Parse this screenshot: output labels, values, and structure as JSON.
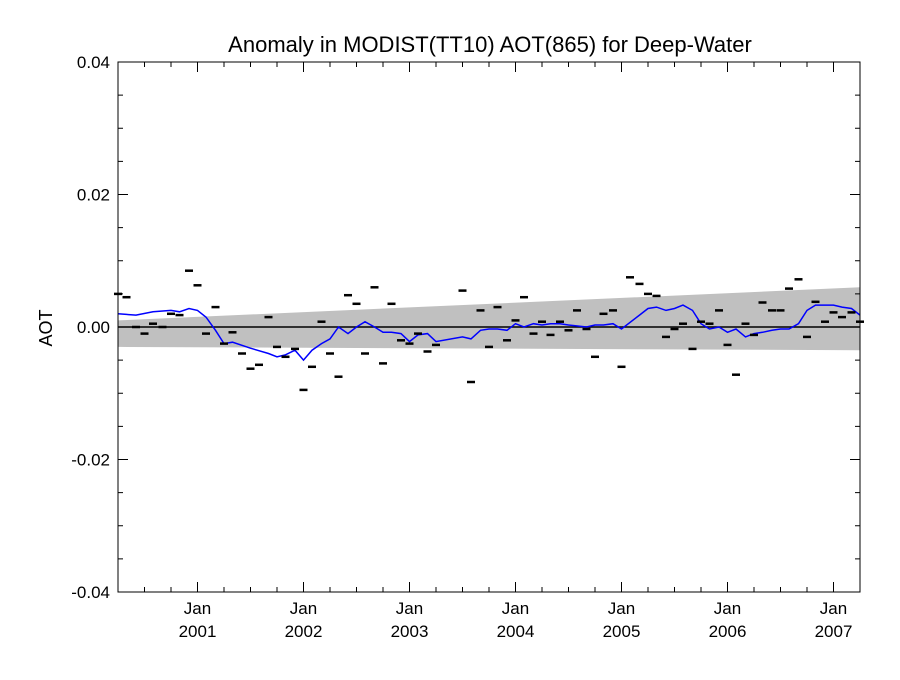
{
  "chart_data": {
    "type": "scatter",
    "title": "Anomaly in MODIST(TT10) AOT(865) for Deep-Water",
    "xlabel": "",
    "ylabel": "AOT",
    "ylim": [
      -0.04,
      0.04
    ],
    "xlim": [
      2000.25,
      2007.25
    ],
    "y_ticks": [
      {
        "value": 0.04,
        "label": "0.04"
      },
      {
        "value": 0.02,
        "label": "0.02"
      },
      {
        "value": 0.0,
        "label": "0.00"
      },
      {
        "value": -0.02,
        "label": "-0.02"
      },
      {
        "value": -0.04,
        "label": "-0.04"
      }
    ],
    "x_ticks": [
      {
        "value": 2001,
        "month": "Jan",
        "year": "2001"
      },
      {
        "value": 2002,
        "month": "Jan",
        "year": "2002"
      },
      {
        "value": 2003,
        "month": "Jan",
        "year": "2003"
      },
      {
        "value": 2004,
        "month": "Jan",
        "year": "2004"
      },
      {
        "value": 2005,
        "month": "Jan",
        "year": "2005"
      },
      {
        "value": 2006,
        "month": "Jan",
        "year": "2006"
      },
      {
        "value": 2007,
        "month": "Jan",
        "year": "2007"
      }
    ],
    "zero_line": 0.0,
    "grid": false,
    "colors": {
      "band": "#c0c0c0",
      "line": "#0000ff",
      "markers": "#000000",
      "zero_line": "#000000"
    },
    "series": [
      {
        "type": "scatter",
        "x": [
          2000.25,
          2000.33,
          2000.42,
          2000.5,
          2000.58,
          2000.67,
          2000.75,
          2000.83,
          2000.92,
          2001.0,
          2001.08,
          2001.17,
          2001.25,
          2001.33,
          2001.42,
          2001.5,
          2001.58,
          2001.67,
          2001.75,
          2001.83,
          2001.92,
          2002.0,
          2002.08,
          2002.17,
          2002.25,
          2002.33,
          2002.42,
          2002.5,
          2002.58,
          2002.67,
          2002.75,
          2002.83,
          2002.92,
          2003.0,
          2003.08,
          2003.17,
          2003.25,
          2003.5,
          2003.58,
          2003.67,
          2003.75,
          2003.83,
          2003.92,
          2004.0,
          2004.08,
          2004.17,
          2004.25,
          2004.33,
          2004.42,
          2004.5,
          2004.58,
          2004.67,
          2004.75,
          2004.83,
          2004.92,
          2005.0,
          2005.08,
          2005.17,
          2005.25,
          2005.33,
          2005.42,
          2005.5,
          2005.58,
          2005.67,
          2005.75,
          2005.83,
          2005.92,
          2006.0,
          2006.08,
          2006.17,
          2006.25,
          2006.33,
          2006.42,
          2006.5,
          2006.58,
          2006.67,
          2006.75,
          2006.83,
          2006.92,
          2007.0,
          2007.08,
          2007.17,
          2007.25
        ],
        "y": [
          0.005,
          0.0045,
          0.0,
          -0.001,
          0.0005,
          0.0,
          0.002,
          0.0018,
          0.0085,
          0.0063,
          -0.001,
          0.003,
          -0.0025,
          -0.0008,
          -0.004,
          -0.0063,
          -0.0057,
          0.0015,
          -0.003,
          -0.0045,
          -0.0033,
          -0.0095,
          -0.006,
          0.0008,
          -0.004,
          -0.0075,
          0.0048,
          0.0035,
          -0.004,
          0.006,
          -0.0055,
          0.0035,
          -0.002,
          -0.0025,
          -0.001,
          -0.0037,
          -0.0027,
          0.0055,
          -0.0083,
          0.0025,
          -0.003,
          0.003,
          -0.002,
          0.001,
          0.0045,
          -0.001,
          0.0008,
          -0.0012,
          0.0008,
          -0.0005,
          0.0025,
          -0.0003,
          -0.0045,
          0.002,
          0.0025,
          -0.006,
          0.0075,
          0.0065,
          0.005,
          0.0047,
          -0.0015,
          -0.0003,
          0.0005,
          -0.0033,
          0.0008,
          0.0005,
          0.0025,
          -0.0027,
          -0.0072,
          0.0005,
          -0.0012,
          0.0037,
          0.0025,
          0.0025,
          0.0058,
          0.0072,
          -0.0015,
          0.0038,
          0.0008,
          0.0022,
          0.0015,
          0.0022,
          0.0008
        ]
      },
      {
        "type": "line",
        "x": [
          2000.25,
          2000.42,
          2000.58,
          2000.75,
          2000.83,
          2000.92,
          2001.0,
          2001.08,
          2001.17,
          2001.25,
          2001.33,
          2001.5,
          2001.67,
          2001.75,
          2001.83,
          2001.92,
          2002.0,
          2002.08,
          2002.17,
          2002.25,
          2002.33,
          2002.42,
          2002.5,
          2002.58,
          2002.67,
          2002.75,
          2002.83,
          2002.92,
          2003.0,
          2003.08,
          2003.17,
          2003.25,
          2003.5,
          2003.58,
          2003.67,
          2003.75,
          2003.83,
          2003.92,
          2004.0,
          2004.08,
          2004.17,
          2004.25,
          2004.33,
          2004.42,
          2004.5,
          2004.67,
          2004.75,
          2004.83,
          2004.92,
          2005.0,
          2005.17,
          2005.25,
          2005.33,
          2005.42,
          2005.5,
          2005.58,
          2005.67,
          2005.75,
          2005.83,
          2005.92,
          2006.0,
          2006.08,
          2006.17,
          2006.25,
          2006.33,
          2006.42,
          2006.5,
          2006.58,
          2006.67,
          2006.75,
          2006.83,
          2006.92,
          2007.0,
          2007.08,
          2007.17,
          2007.25
        ],
        "y": [
          0.002,
          0.0018,
          0.0023,
          0.0025,
          0.0023,
          0.0028,
          0.0025,
          0.0015,
          -0.0005,
          -0.0025,
          -0.0023,
          -0.0032,
          -0.004,
          -0.0045,
          -0.0042,
          -0.0035,
          -0.005,
          -0.0035,
          -0.0025,
          -0.0018,
          0.0,
          -0.001,
          0.0,
          0.0008,
          0.0,
          -0.0008,
          -0.0008,
          -0.001,
          -0.0022,
          -0.0012,
          -0.001,
          -0.0022,
          -0.0015,
          -0.0018,
          -0.0005,
          -0.0003,
          -0.0003,
          -0.0005,
          0.0005,
          0.0,
          0.0005,
          0.0003,
          0.0005,
          0.0005,
          0.0003,
          0.0,
          0.0003,
          0.0003,
          0.0005,
          -0.0003,
          0.0018,
          0.0028,
          0.003,
          0.0025,
          0.0028,
          0.0033,
          0.0025,
          0.0005,
          -0.0003,
          0.0,
          -0.0008,
          -0.0003,
          -0.0015,
          -0.001,
          -0.0008,
          -0.0005,
          -0.0003,
          -0.0003,
          0.0005,
          0.0025,
          0.0033,
          0.0033,
          0.0033,
          0.003,
          0.0028,
          0.0018
        ]
      }
    ],
    "uncertainty_band": {
      "x": [
        2000.25,
        2007.25
      ],
      "upper": [
        0.001,
        0.006
      ],
      "lower": [
        -0.003,
        -0.0035
      ]
    }
  }
}
